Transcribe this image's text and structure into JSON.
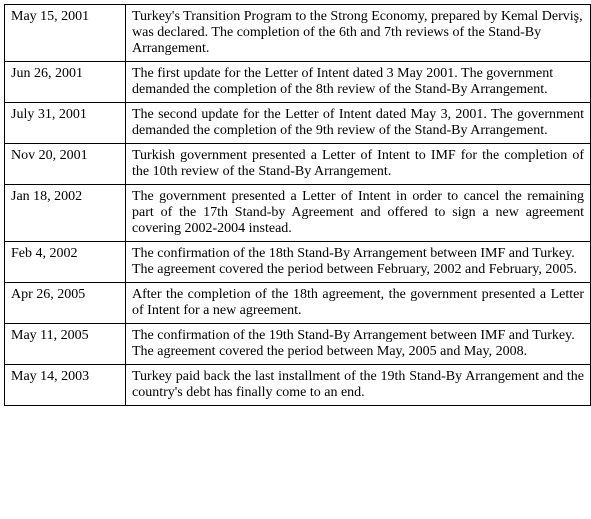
{
  "rows": [
    {
      "date": "May 15, 2001",
      "desc": "Turkey's Transition Program to the Strong Economy, prepared by Kemal Derviş, was declared. The completion of the 6th and 7th reviews of the Stand-By Arrangement.",
      "justify": false
    },
    {
      "date": "Jun 26, 2001",
      "desc": "The first update for the Letter of Intent dated 3 May 2001. The government demanded the completion of the 8th review of the Stand-By Arrangement.",
      "justify": false
    },
    {
      "date": "July 31, 2001",
      "desc": "The second update for the Letter of Intent dated May 3, 2001. The government demanded the completion of the 9th review of the Stand-By Arrangement.",
      "justify": true
    },
    {
      "date": "Nov 20, 2001",
      "desc": "Turkish government presented a Letter of Intent to IMF for the completion of the 10th review of the Stand-By Arrangement.",
      "justify": true
    },
    {
      "date": "Jan 18, 2002",
      "desc": "The government presented a Letter of Intent in order to cancel the remaining part of the 17th Stand-by Agreement and offered to sign a new agreement covering 2002-2004 instead.",
      "justify": true
    },
    {
      "date": "Feb 4, 2002",
      "desc": "The confirmation of the 18th Stand-By Arrangement between IMF and Turkey. The agreement covered the period between February, 2002 and February, 2005.",
      "justify": false
    },
    {
      "date": "Apr 26, 2005",
      "desc": "After the completion of the 18th agreement, the government presented a Letter of Intent for a new agreement.",
      "justify": true
    },
    {
      "date": "May 11, 2005",
      "desc": "The confirmation of the 19th Stand-By Arrangement between IMF and Turkey. The agreement covered the period between May, 2005 and May, 2008.",
      "justify": false
    },
    {
      "date": "May 14, 2003",
      "desc": "Turkey paid back the last installment of the 19th Stand-By Arrangement and the country's debt has finally come to an end.",
      "justify": true
    }
  ]
}
